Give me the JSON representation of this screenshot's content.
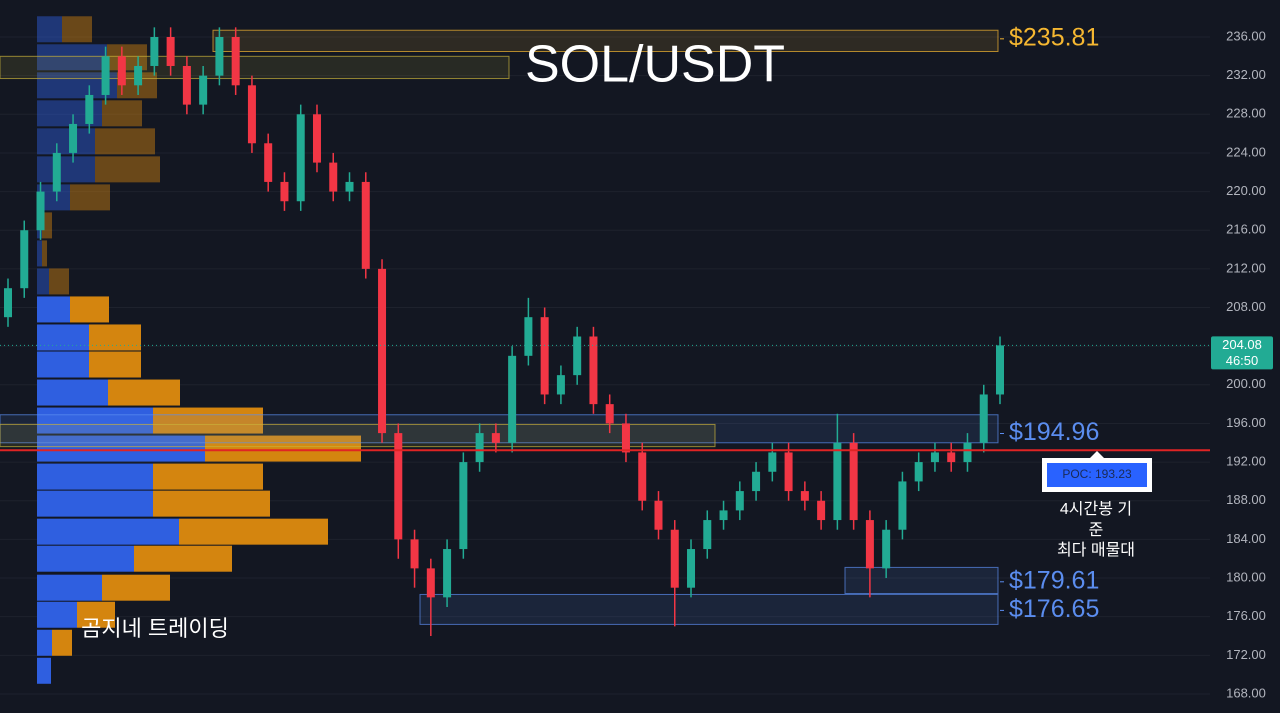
{
  "chart_data": {
    "type": "candlestick",
    "title": "SOL/USDT",
    "ylim": [
      166.03,
      239.83
    ],
    "yticks": [
      {
        "value": 168,
        "label": "168.00"
      },
      {
        "value": 172,
        "label": "172.00"
      },
      {
        "value": 176,
        "label": "176.00"
      },
      {
        "value": 180,
        "label": "180.00"
      },
      {
        "value": 184,
        "label": "184.00"
      },
      {
        "value": 188,
        "label": "188.00"
      },
      {
        "value": 192,
        "label": "192.00"
      },
      {
        "value": 196,
        "label": "196.00"
      },
      {
        "value": 200,
        "label": "200.00"
      },
      {
        "value": 204,
        "label": "204.00"
      },
      {
        "value": 208,
        "label": "208.00"
      },
      {
        "value": 212,
        "label": "212.00"
      },
      {
        "value": 216,
        "label": "216.00"
      },
      {
        "value": 220,
        "label": "220.00"
      },
      {
        "value": 224,
        "label": "224.00"
      },
      {
        "value": 228,
        "label": "228.00"
      },
      {
        "value": 232,
        "label": "232.00"
      },
      {
        "value": 236,
        "label": "236.00"
      }
    ],
    "grid": true,
    "up_color": "#22ab94",
    "down_color": "#f23645",
    "open": [
      207,
      210,
      216,
      220,
      224,
      227,
      230,
      234,
      231,
      233,
      236,
      233,
      229,
      232,
      236,
      231,
      225,
      221,
      219,
      228,
      223,
      220,
      221,
      212,
      195,
      184,
      181,
      178,
      183,
      192,
      195,
      194,
      203,
      207,
      199,
      201,
      205,
      198,
      196,
      193,
      188,
      185,
      179,
      183,
      186,
      187,
      189,
      191,
      193,
      189,
      188,
      186,
      194,
      186,
      181,
      185,
      190,
      192,
      193,
      192,
      194,
      199
    ],
    "high": [
      211,
      217,
      221,
      225,
      228,
      231,
      235,
      235,
      234,
      237,
      237,
      234,
      233,
      237,
      237,
      232,
      226,
      222,
      229,
      229,
      224,
      222,
      222,
      213,
      196,
      185,
      182,
      184,
      193,
      196,
      196,
      204,
      209,
      208,
      202,
      206,
      206,
      199,
      197,
      194,
      189,
      186,
      184,
      187,
      188,
      190,
      192,
      194,
      194,
      190,
      189,
      197,
      195,
      187,
      186,
      191,
      193,
      194,
      194,
      195,
      200,
      205
    ],
    "low": [
      206,
      209,
      215,
      219,
      223,
      226,
      229,
      230,
      230,
      232,
      232,
      228,
      228,
      231,
      230,
      224,
      220,
      218,
      218,
      222,
      219,
      219,
      211,
      194,
      182,
      179,
      174,
      177,
      182,
      191,
      193,
      193,
      202,
      198,
      198,
      200,
      197,
      195,
      192,
      187,
      184,
      175,
      178,
      182,
      185,
      186,
      188,
      190,
      188,
      187,
      185,
      185,
      185,
      178,
      180,
      184,
      189,
      191,
      191,
      191,
      193,
      198
    ],
    "close": [
      210,
      216,
      220,
      224,
      227,
      230,
      234,
      231,
      233,
      236,
      233,
      229,
      232,
      236,
      231,
      225,
      221,
      219,
      228,
      223,
      220,
      221,
      212,
      195,
      184,
      181,
      178,
      183,
      192,
      195,
      194,
      203,
      207,
      199,
      201,
      205,
      198,
      196,
      193,
      188,
      185,
      179,
      183,
      186,
      187,
      189,
      191,
      193,
      189,
      188,
      186,
      194,
      186,
      181,
      185,
      190,
      192,
      193,
      192,
      194,
      199,
      204.08
    ],
    "volume_profile": {
      "levels": [
        170.4,
        173.3,
        176.2,
        179.0,
        182.0,
        184.8,
        187.7,
        190.5,
        193.4,
        196.3,
        199.2,
        202.1,
        204.9,
        207.8,
        210.7,
        213.6,
        216.5,
        219.4,
        222.3,
        225.2,
        228.1,
        231.0,
        233.9,
        236.8
      ],
      "buy": [
        14,
        15,
        40,
        65,
        97,
        142,
        116,
        116,
        168,
        116,
        71,
        52,
        52,
        33,
        12,
        5,
        5,
        33,
        58,
        58,
        65,
        80,
        70,
        25
      ],
      "sell": [
        0,
        20,
        38,
        68,
        98,
        149,
        117,
        110,
        156,
        110,
        72,
        52,
        52,
        39,
        20,
        5,
        10,
        40,
        65,
        60,
        40,
        40,
        40,
        30
      ],
      "buy_color": "#2f5fe0",
      "sell_color": "#d4850f"
    },
    "zones": [
      {
        "top": 236.7,
        "bottom": 234.5,
        "value": 235.81,
        "label": "$235.81",
        "color": "#f5b731"
      },
      {
        "top": 234.0,
        "bottom": 231.7,
        "color": "#c9b23a"
      },
      {
        "top": 196.9,
        "bottom": 194.0,
        "value": 194.96,
        "label": "$194.96",
        "color": "#5b8def"
      },
      {
        "top": 195.9,
        "bottom": 193.6,
        "color": "#c9b23a"
      },
      {
        "top": 181.1,
        "bottom": 178.4,
        "value": 179.61,
        "label": "$179.61",
        "color": "#5b8def"
      },
      {
        "top": 178.3,
        "bottom": 175.2,
        "value": 176.65,
        "label": "$176.65",
        "color": "#5b8def"
      }
    ],
    "poc": {
      "value": 193.23,
      "label": "POC: 193.23",
      "color": "#e02424"
    },
    "last_price": 204.08,
    "countdown": "46:50",
    "annotation": [
      "4시간봉 기",
      "준",
      "최다 매물대"
    ],
    "watermark": "곰지네 트레이딩"
  }
}
